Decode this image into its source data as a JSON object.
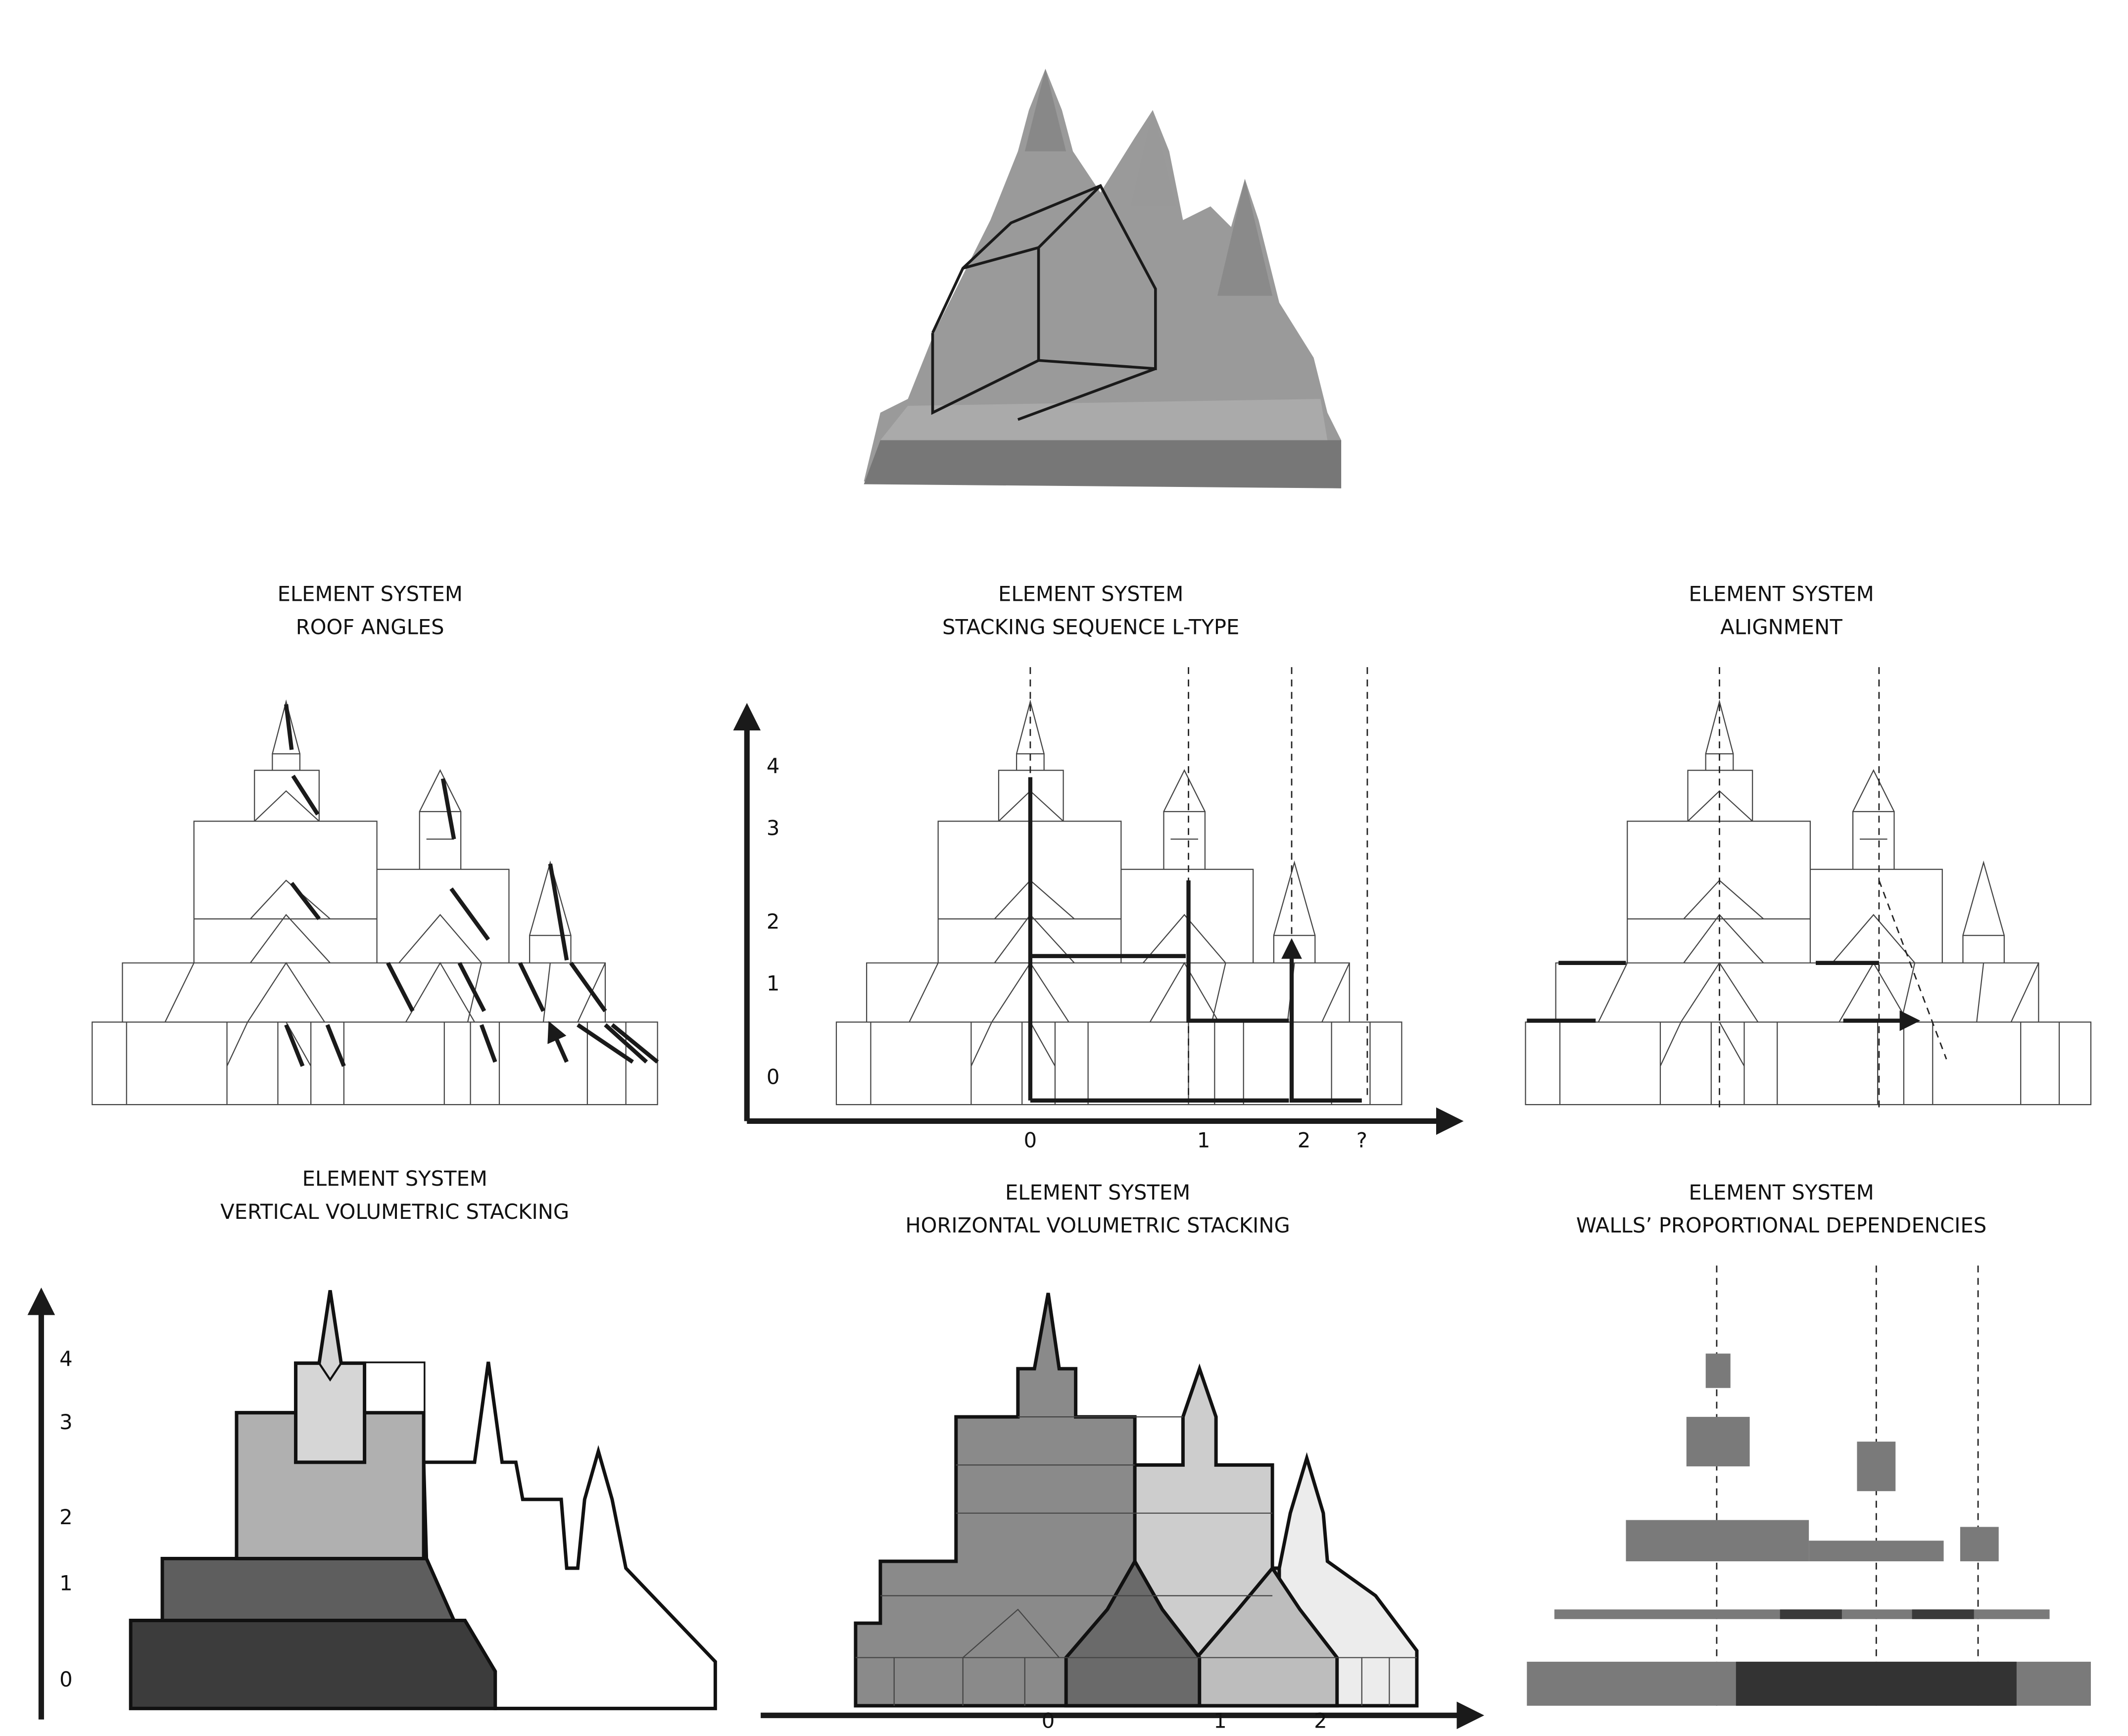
{
  "panels": [
    {
      "title": "ELEMENT SYSTEM",
      "subtitle": "ROOF ANGLES"
    },
    {
      "title": "ELEMENT SYSTEM",
      "subtitle": "STACKING SEQUENCE L-TYPE",
      "y_labels": [
        "0",
        "1",
        "2",
        "3",
        "4"
      ],
      "x_labels": [
        "0",
        "1",
        "2",
        "?"
      ]
    },
    {
      "title": "ELEMENT SYSTEM",
      "subtitle": "ALIGNMENT"
    },
    {
      "title": "ELEMENT SYSTEM",
      "subtitle": "VERTICAL VOLUMETRIC STACKING",
      "y_labels": [
        "0",
        "1",
        "2",
        "3",
        "4"
      ]
    },
    {
      "title": "ELEMENT SYSTEM",
      "subtitle": "HORIZONTAL VOLUMETRIC STACKING",
      "x_labels": [
        "0",
        "1",
        "2"
      ]
    },
    {
      "title": "ELEMENT SYSTEM",
      "subtitle": "WALLS’ PROPORTIONAL DEPENDENCIES"
    }
  ]
}
